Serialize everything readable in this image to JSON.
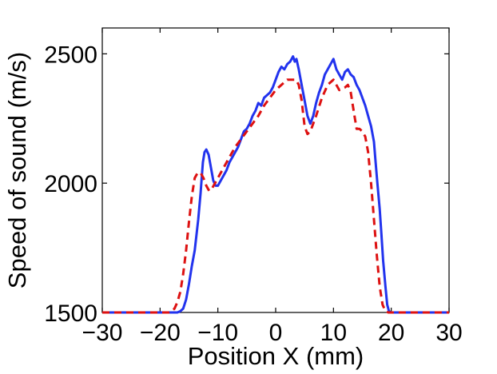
{
  "chart_data": {
    "type": "line",
    "title": "",
    "xlabel": "Position X (mm)",
    "ylabel": "Speed of sound (m/s)",
    "xlim": [
      -30,
      30
    ],
    "ylim": [
      1500,
      2600
    ],
    "xticks": [
      -30,
      -20,
      -10,
      0,
      10,
      20,
      30
    ],
    "yticks": [
      1500,
      2000,
      2500
    ],
    "xtick_labels": [
      "−30",
      "−20",
      "−10",
      "0",
      "10",
      "20",
      "30"
    ],
    "ytick_labels": [
      "1500",
      "2000",
      "2500"
    ],
    "grid": false,
    "legend": "none",
    "series": [
      {
        "style": "solid",
        "color": "#2233ee",
        "x": [
          -30,
          -20,
          -18,
          -17,
          -16.5,
          -16,
          -15.5,
          -15,
          -14.5,
          -14,
          -13.7,
          -13.4,
          -13,
          -12.6,
          -12.3,
          -12,
          -11.6,
          -11.2,
          -10.8,
          -10.4,
          -10,
          -9.5,
          -9,
          -8.5,
          -8,
          -7.5,
          -7,
          -6.5,
          -6,
          -5.5,
          -5,
          -4.5,
          -4,
          -3.5,
          -3,
          -2.5,
          -2,
          -1.5,
          -1,
          -0.5,
          0,
          0.5,
          1,
          1.5,
          2,
          2.5,
          3,
          3.3,
          3.6,
          4,
          4.5,
          5,
          5.5,
          6,
          6.5,
          7,
          7.5,
          8,
          8.5,
          9,
          9.5,
          10,
          10.5,
          11,
          11.5,
          12,
          12.5,
          13,
          13.5,
          14,
          14.5,
          15,
          15.5,
          16,
          16.5,
          17,
          17.3,
          17.6,
          18,
          18.3,
          18.6,
          19,
          19.3,
          19.6,
          20,
          22,
          30
        ],
        "y": [
          1500,
          1500,
          1500,
          1500,
          1505,
          1515,
          1550,
          1610,
          1680,
          1740,
          1800,
          1860,
          1960,
          2080,
          2120,
          2130,
          2110,
          2060,
          2010,
          1990,
          1990,
          2010,
          2030,
          2050,
          2080,
          2100,
          2120,
          2140,
          2170,
          2200,
          2210,
          2230,
          2260,
          2280,
          2310,
          2300,
          2330,
          2340,
          2350,
          2370,
          2400,
          2430,
          2450,
          2440,
          2460,
          2470,
          2490,
          2470,
          2480,
          2440,
          2380,
          2320,
          2260,
          2230,
          2260,
          2310,
          2350,
          2380,
          2420,
          2440,
          2460,
          2480,
          2440,
          2420,
          2400,
          2430,
          2440,
          2420,
          2410,
          2380,
          2360,
          2330,
          2300,
          2260,
          2220,
          2160,
          2080,
          2000,
          1900,
          1800,
          1700,
          1600,
          1530,
          1505,
          1500,
          1500,
          1500
        ]
      },
      {
        "style": "dashed",
        "color": "#dd1111",
        "x": [
          -30,
          -18.5,
          -18,
          -17.5,
          -17,
          -16.5,
          -16,
          -15.5,
          -15,
          -14.5,
          -14,
          -13.5,
          -13,
          -12.5,
          -12,
          -11.5,
          -11,
          -10.5,
          -10,
          -9,
          -8,
          -7,
          -6,
          -5,
          -4,
          -3,
          -2,
          -1,
          0,
          1,
          2,
          3,
          3.5,
          4,
          4.5,
          5,
          5.5,
          6,
          7,
          8,
          9,
          10,
          11,
          12,
          12.5,
          13,
          13.5,
          14,
          14.5,
          15,
          15.5,
          16,
          16.5,
          17,
          17.5,
          18,
          18.5,
          19,
          19.5,
          20,
          30
        ],
        "y": [
          1500,
          1500,
          1505,
          1515,
          1540,
          1580,
          1650,
          1740,
          1850,
          1950,
          2020,
          2040,
          2040,
          2020,
          1990,
          1970,
          1980,
          2000,
          2020,
          2060,
          2100,
          2140,
          2170,
          2200,
          2230,
          2260,
          2300,
          2330,
          2360,
          2380,
          2400,
          2400,
          2400,
          2380,
          2320,
          2220,
          2190,
          2200,
          2260,
          2330,
          2380,
          2400,
          2360,
          2370,
          2380,
          2350,
          2280,
          2210,
          2210,
          2200,
          2180,
          2120,
          2000,
          1860,
          1720,
          1600,
          1530,
          1505,
          1500,
          1500,
          1500
        ]
      }
    ]
  }
}
